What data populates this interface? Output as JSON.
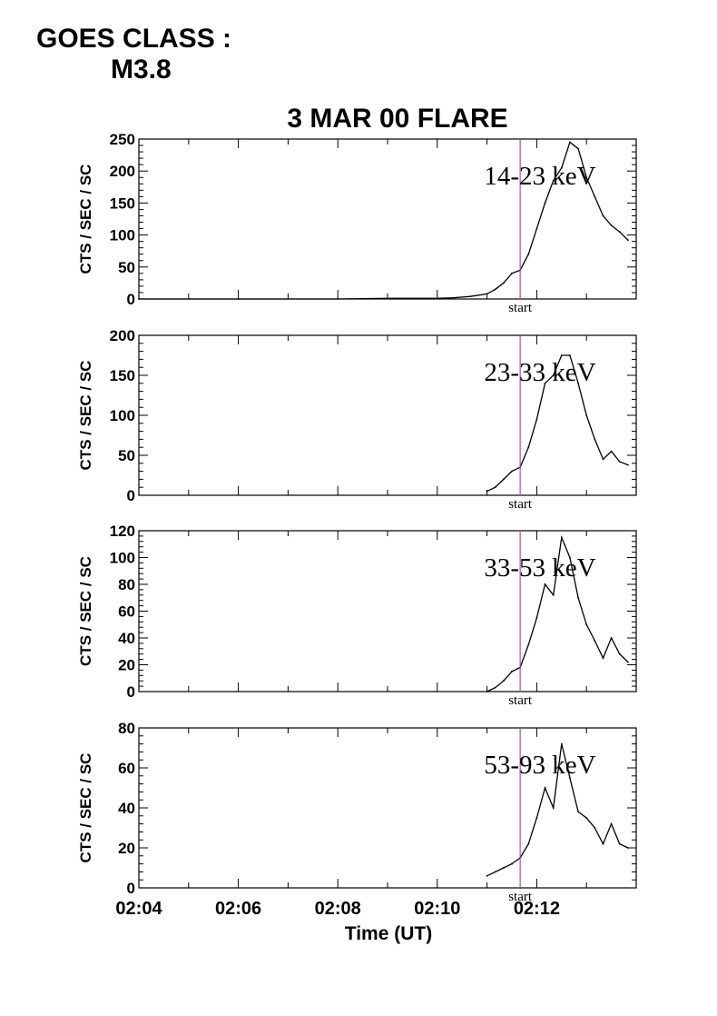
{
  "header": {
    "goes_class_label": "GOES CLASS :",
    "goes_class_value": "M3.8"
  },
  "chart_data": {
    "type": "line",
    "title": "3 MAR 00 FLARE",
    "xlabel": "Time (UT)",
    "x_unit": "UT",
    "xlim": [
      "02:04",
      "02:14"
    ],
    "xtick_labels": [
      "02:04",
      "02:06",
      "02:08",
      "02:10",
      "02:12"
    ],
    "marker": {
      "label": "start",
      "x": "02:11:40",
      "color": "#c040c0"
    },
    "line_color": "#000000",
    "panels": [
      {
        "name": "14-23 keV",
        "ylabel": "CTS / SEC / SC",
        "ylim": [
          0,
          250
        ],
        "yticks": [
          0,
          50,
          100,
          150,
          200,
          250
        ],
        "x": [
          "02:04:00",
          "02:06:00",
          "02:08:00",
          "02:09:00",
          "02:10:00",
          "02:10:20",
          "02:10:40",
          "02:11:00",
          "02:11:10",
          "02:11:20",
          "02:11:30",
          "02:11:40",
          "02:11:50",
          "02:12:00",
          "02:12:10",
          "02:12:20",
          "02:12:30",
          "02:12:40",
          "02:12:50",
          "02:13:00",
          "02:13:10",
          "02:13:20",
          "02:13:30",
          "02:13:40",
          "02:13:50"
        ],
        "values": [
          0,
          0,
          0,
          1,
          1,
          2,
          4,
          8,
          15,
          25,
          40,
          45,
          70,
          110,
          150,
          185,
          205,
          245,
          235,
          190,
          160,
          130,
          115,
          105,
          92
        ]
      },
      {
        "name": "23-33 keV",
        "ylabel": "CTS / SEC / SC",
        "ylim": [
          0,
          200
        ],
        "yticks": [
          0,
          50,
          100,
          150,
          200
        ],
        "x": [
          "02:11:00",
          "02:11:10",
          "02:11:20",
          "02:11:30",
          "02:11:40",
          "02:11:50",
          "02:12:00",
          "02:12:10",
          "02:12:20",
          "02:12:30",
          "02:12:40",
          "02:12:50",
          "02:13:00",
          "02:13:10",
          "02:13:20",
          "02:13:30",
          "02:13:40",
          "02:13:50"
        ],
        "values": [
          5,
          10,
          20,
          30,
          35,
          60,
          95,
          140,
          150,
          175,
          175,
          140,
          100,
          70,
          45,
          55,
          42,
          38
        ]
      },
      {
        "name": "33-53 keV",
        "ylabel": "CTS / SEC / SC",
        "ylim": [
          0,
          120
        ],
        "yticks": [
          0,
          20,
          40,
          60,
          80,
          100,
          120
        ],
        "x": [
          "02:11:00",
          "02:11:10",
          "02:11:20",
          "02:11:30",
          "02:11:40",
          "02:11:50",
          "02:12:00",
          "02:12:10",
          "02:12:20",
          "02:12:30",
          "02:12:40",
          "02:12:50",
          "02:13:00",
          "02:13:10",
          "02:13:20",
          "02:13:30",
          "02:13:40",
          "02:13:50"
        ],
        "values": [
          0,
          3,
          8,
          15,
          18,
          35,
          55,
          80,
          72,
          115,
          100,
          70,
          50,
          38,
          25,
          40,
          28,
          22
        ]
      },
      {
        "name": "53-93 keV",
        "ylabel": "CTS / SEC / SC",
        "ylim": [
          0,
          80
        ],
        "yticks": [
          0,
          20,
          40,
          60,
          80
        ],
        "x": [
          "02:11:00",
          "02:11:10",
          "02:11:20",
          "02:11:30",
          "02:11:40",
          "02:11:50",
          "02:12:00",
          "02:12:10",
          "02:12:20",
          "02:12:30",
          "02:12:40",
          "02:12:50",
          "02:13:00",
          "02:13:10",
          "02:13:20",
          "02:13:30",
          "02:13:40",
          "02:13:50"
        ],
        "values": [
          6,
          8,
          10,
          12,
          15,
          22,
          35,
          50,
          40,
          72,
          55,
          38,
          35,
          30,
          22,
          32,
          22,
          20
        ]
      }
    ]
  }
}
